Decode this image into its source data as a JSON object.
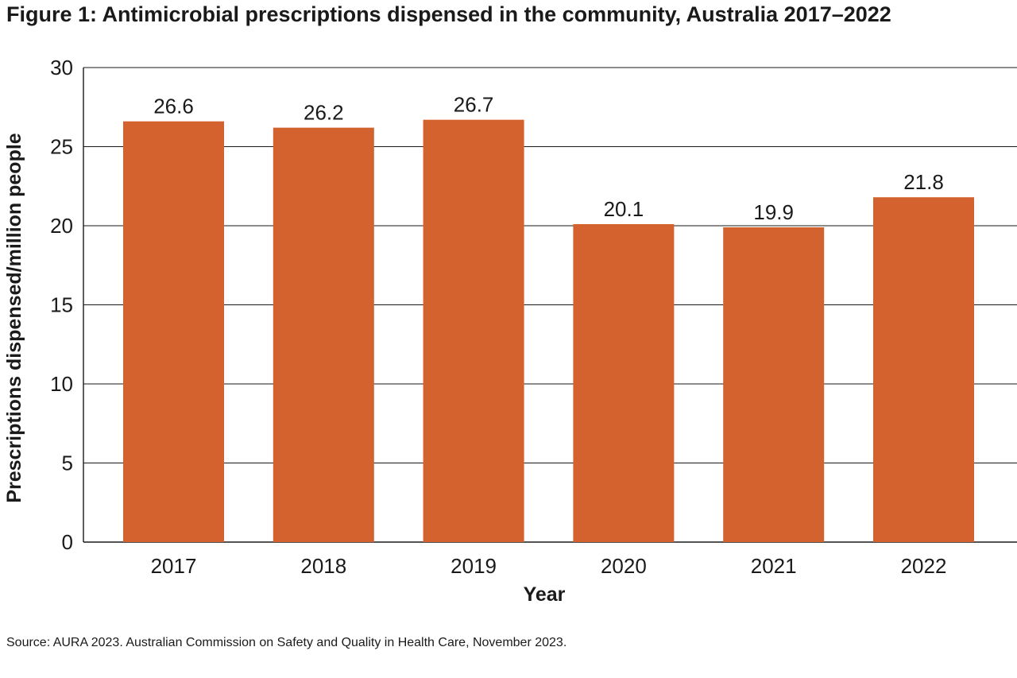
{
  "title": "Figure 1: Antimicrobial prescriptions dispensed in the community, Australia 2017–2022",
  "source": "Source: AURA 2023. Australian Commission on Safety and Quality in Health Care, November 2023.",
  "colors": {
    "bar": "#d4622e",
    "grid": "#1a1a1a",
    "text": "#1a1a1a"
  },
  "chart_data": {
    "type": "bar",
    "title": "Figure 1: Antimicrobial prescriptions dispensed in the community, Australia 2017–2022",
    "categories": [
      "2017",
      "2018",
      "2019",
      "2020",
      "2021",
      "2022"
    ],
    "values": [
      26.6,
      26.2,
      26.7,
      20.1,
      19.9,
      21.8
    ],
    "value_labels": [
      "26.6",
      "26.2",
      "26.7",
      "20.1",
      "19.9",
      "21.8"
    ],
    "xlabel": "Year",
    "ylabel": "Prescriptions dispensed/million people",
    "ylim": [
      0,
      30
    ],
    "yticks": [
      0,
      5,
      10,
      15,
      20,
      25,
      30
    ],
    "ytick_labels": [
      "0",
      "5",
      "10",
      "15",
      "20",
      "25",
      "30"
    ],
    "grid": true,
    "legend": false
  }
}
